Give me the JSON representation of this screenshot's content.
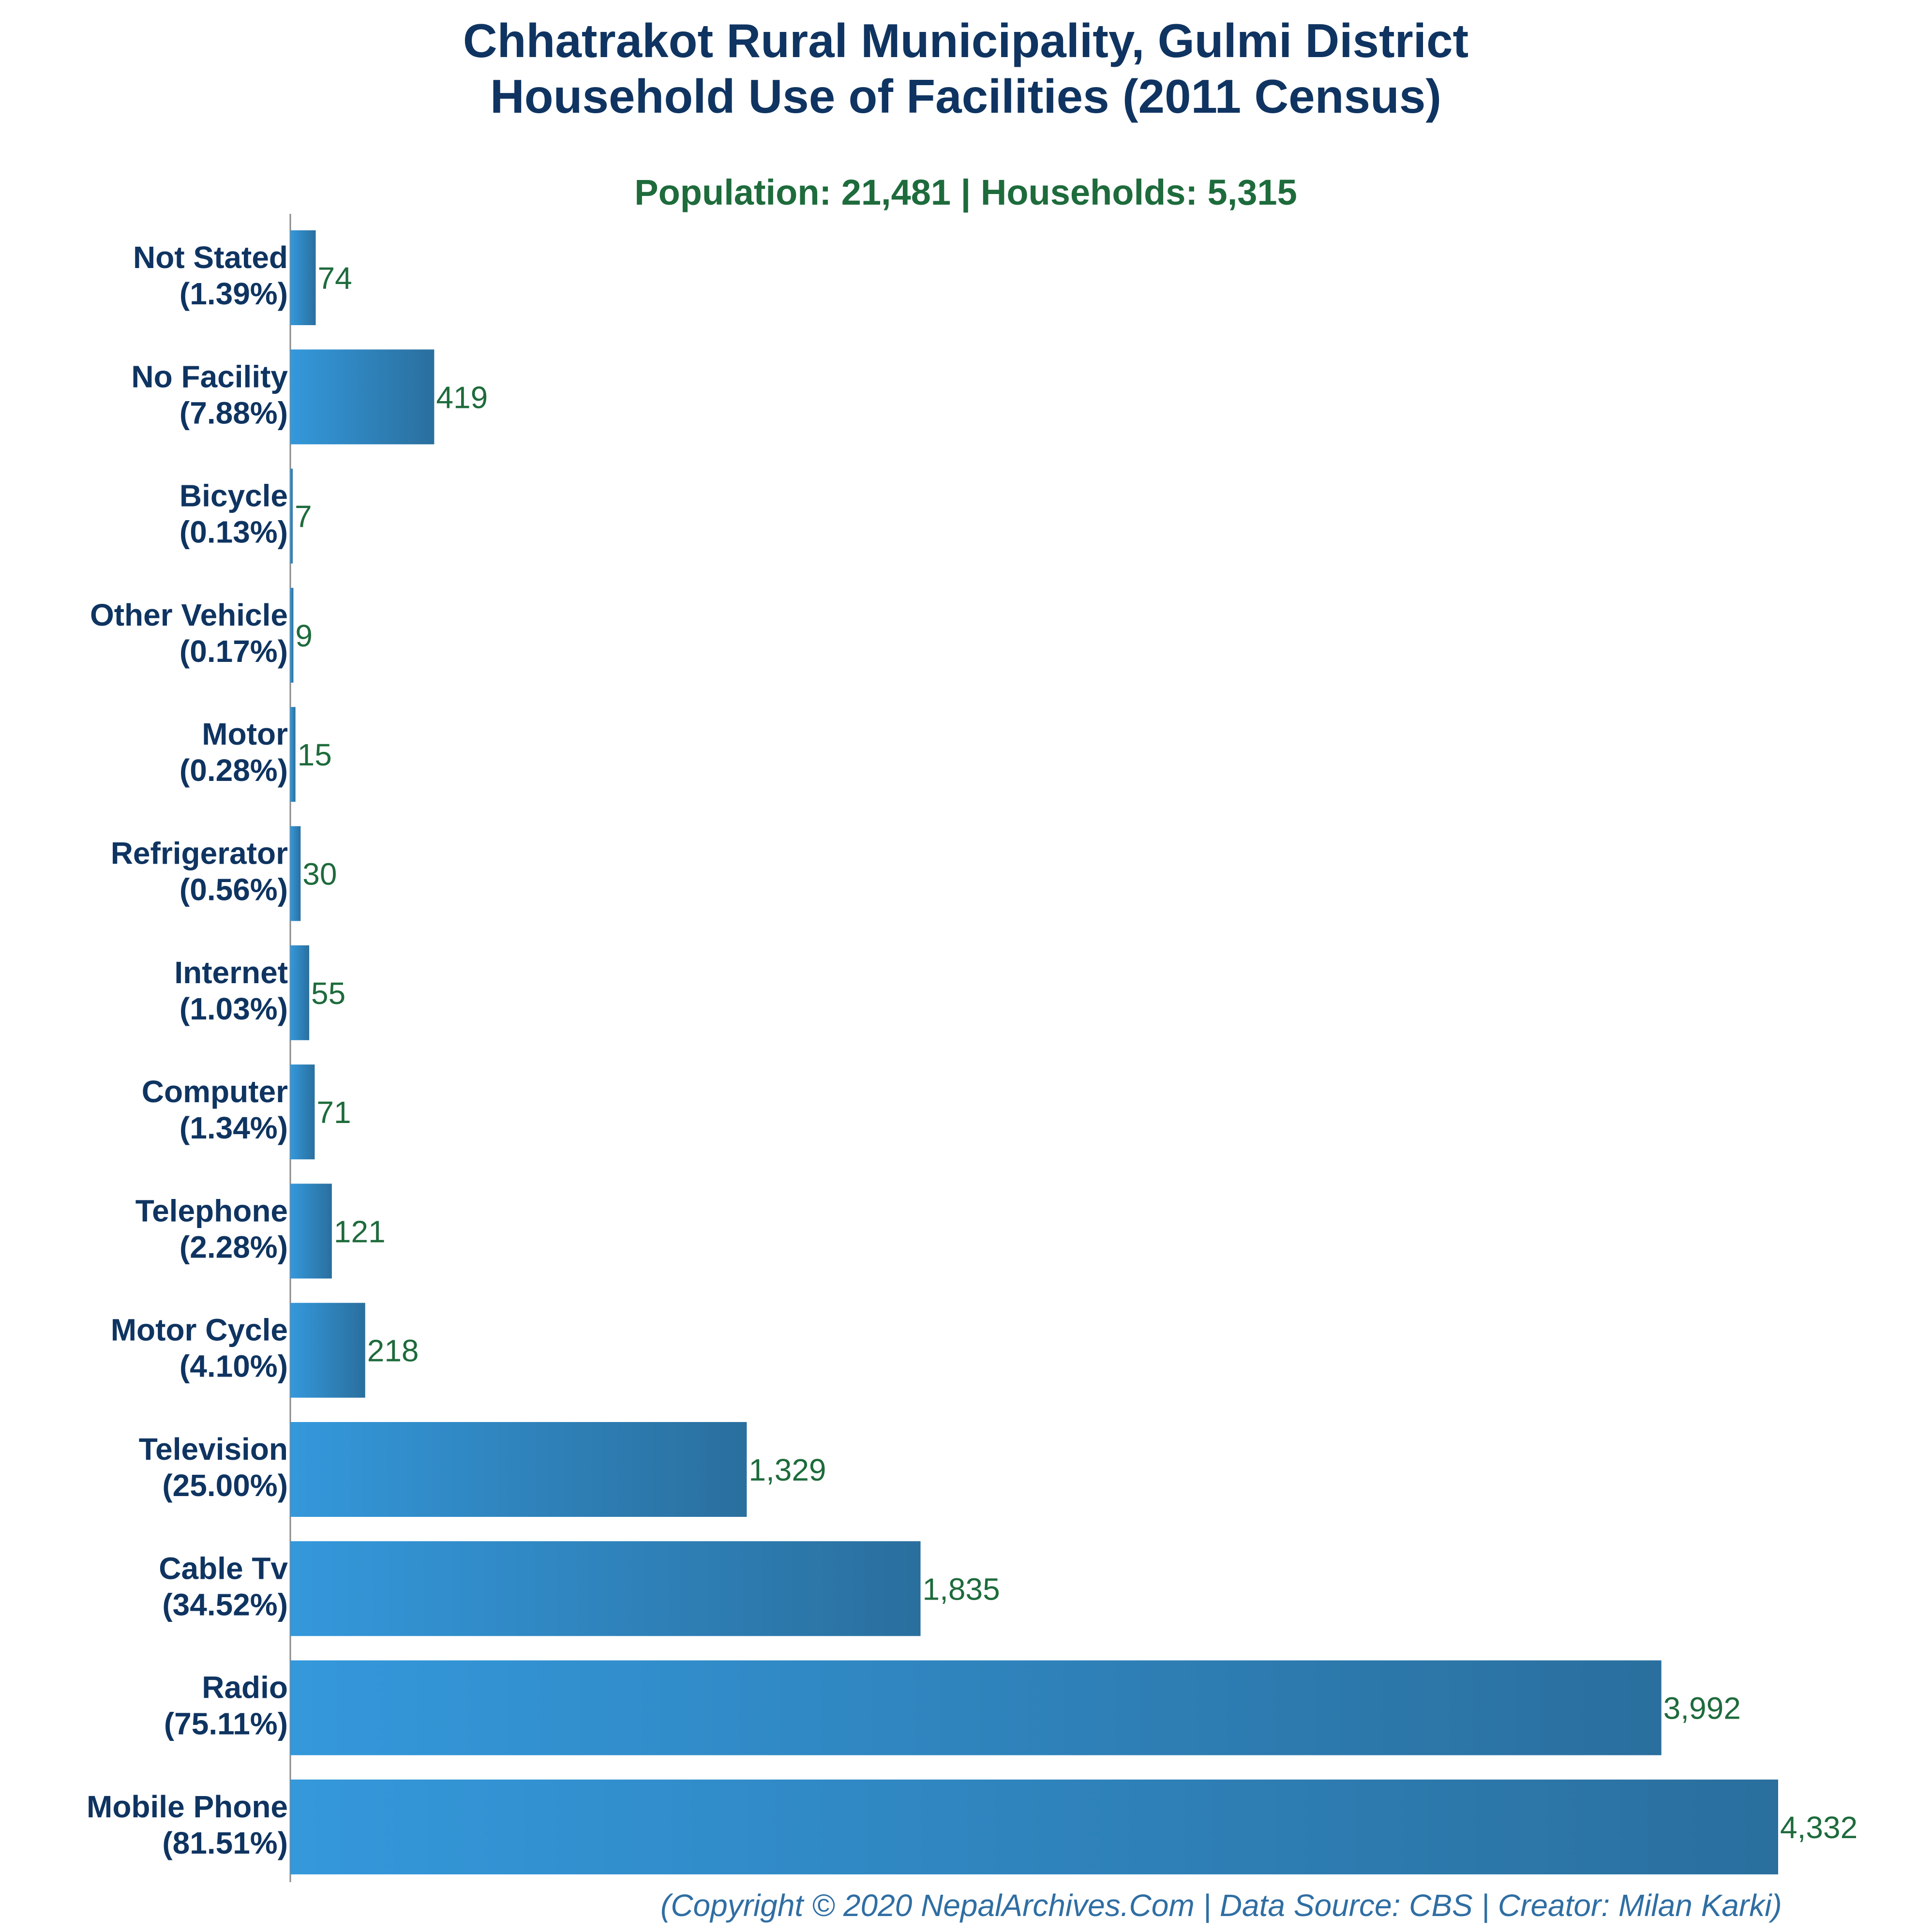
{
  "chart_data": {
    "type": "bar",
    "orientation": "horizontal",
    "title": "Chhatrakot Rural Municipality, Gulmi District",
    "title_line2": "Household Use of Facilities (2011 Census)",
    "subtitle": "Population: 21,481 | Households: 5,315",
    "categories": [
      {
        "name": "Not Stated",
        "pct": "(1.39%)",
        "value": 74,
        "label": "74"
      },
      {
        "name": "No Facility",
        "pct": "(7.88%)",
        "value": 419,
        "label": "419"
      },
      {
        "name": "Bicycle",
        "pct": "(0.13%)",
        "value": 7,
        "label": "7"
      },
      {
        "name": "Other Vehicle",
        "pct": "(0.17%)",
        "value": 9,
        "label": "9"
      },
      {
        "name": "Motor",
        "pct": "(0.28%)",
        "value": 15,
        "label": "15"
      },
      {
        "name": "Refrigerator",
        "pct": "(0.56%)",
        "value": 30,
        "label": "30"
      },
      {
        "name": "Internet",
        "pct": "(1.03%)",
        "value": 55,
        "label": "55"
      },
      {
        "name": "Computer",
        "pct": "(1.34%)",
        "value": 71,
        "label": "71"
      },
      {
        "name": "Telephone",
        "pct": "(2.28%)",
        "value": 121,
        "label": "121"
      },
      {
        "name": "Motor Cycle",
        "pct": "(4.10%)",
        "value": 218,
        "label": "218"
      },
      {
        "name": "Television",
        "pct": "(25.00%)",
        "value": 1329,
        "label": "1,329"
      },
      {
        "name": "Cable Tv",
        "pct": "(34.52%)",
        "value": 1835,
        "label": "1,835"
      },
      {
        "name": "Radio",
        "pct": "(75.11%)",
        "value": 3992,
        "label": "3,992"
      },
      {
        "name": "Mobile Phone",
        "pct": "(81.51%)",
        "value": 4332,
        "label": "4,332"
      }
    ],
    "xlim": [
      0,
      4332
    ],
    "grid": false,
    "legend": "none",
    "colors": {
      "bar_light": "#3498db",
      "bar_dark": "#2a6f9e",
      "title": "#0f3461",
      "subtitle": "#1e6b3c",
      "value_label": "#1e6b3c",
      "footer": "#2f6ea3"
    },
    "footer": "(Copyright © 2020 NepalArchives.Com | Data Source: CBS | Creator: Milan Karki)"
  }
}
